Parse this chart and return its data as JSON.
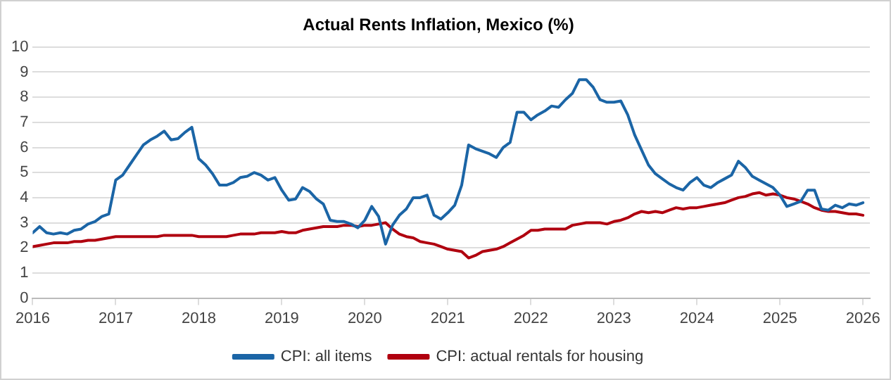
{
  "chart_data": {
    "type": "line",
    "title": "Actual Rents Inflation, Mexico (%)",
    "x": [
      "2016-01",
      "2016-02",
      "2016-03",
      "2016-04",
      "2016-05",
      "2016-06",
      "2016-07",
      "2016-08",
      "2016-09",
      "2016-10",
      "2016-11",
      "2016-12",
      "2017-01",
      "2017-02",
      "2017-03",
      "2017-04",
      "2017-05",
      "2017-06",
      "2017-07",
      "2017-08",
      "2017-09",
      "2017-10",
      "2017-11",
      "2017-12",
      "2018-01",
      "2018-02",
      "2018-03",
      "2018-04",
      "2018-05",
      "2018-06",
      "2018-07",
      "2018-08",
      "2018-09",
      "2018-10",
      "2018-11",
      "2018-12",
      "2019-01",
      "2019-02",
      "2019-03",
      "2019-04",
      "2019-05",
      "2019-06",
      "2019-07",
      "2019-08",
      "2019-09",
      "2019-10",
      "2019-11",
      "2019-12",
      "2020-01",
      "2020-02",
      "2020-03",
      "2020-04",
      "2020-05",
      "2020-06",
      "2020-07",
      "2020-08",
      "2020-09",
      "2020-10",
      "2020-11",
      "2020-12",
      "2021-01",
      "2021-02",
      "2021-03",
      "2021-04",
      "2021-05",
      "2021-06",
      "2021-07",
      "2021-08",
      "2021-09",
      "2021-10",
      "2021-11",
      "2021-12",
      "2022-01",
      "2022-02",
      "2022-03",
      "2022-04",
      "2022-05",
      "2022-06",
      "2022-07",
      "2022-08",
      "2022-09",
      "2022-10",
      "2022-11",
      "2022-12",
      "2023-01",
      "2023-02",
      "2023-03",
      "2023-04",
      "2023-05",
      "2023-06",
      "2023-07",
      "2023-08",
      "2023-09",
      "2023-10",
      "2023-11",
      "2023-12",
      "2024-01",
      "2024-02",
      "2024-03",
      "2024-04",
      "2024-05",
      "2024-06",
      "2024-07",
      "2024-08",
      "2024-09",
      "2024-10",
      "2024-11",
      "2024-12",
      "2025-01",
      "2025-02",
      "2025-03",
      "2025-04",
      "2025-05",
      "2025-06",
      "2025-07",
      "2025-08",
      "2025-09",
      "2025-10",
      "2025-11",
      "2025-12",
      "2026-01"
    ],
    "series": [
      {
        "name": "CPI: all items",
        "color": "#1b65a6",
        "values": [
          2.6,
          2.85,
          2.6,
          2.55,
          2.6,
          2.55,
          2.7,
          2.75,
          2.95,
          3.05,
          3.25,
          3.35,
          4.7,
          4.9,
          5.3,
          5.7,
          6.1,
          6.3,
          6.45,
          6.65,
          6.3,
          6.35,
          6.6,
          6.8,
          5.55,
          5.3,
          4.95,
          4.5,
          4.5,
          4.6,
          4.8,
          4.85,
          5.0,
          4.9,
          4.7,
          4.8,
          4.3,
          3.9,
          3.95,
          4.4,
          4.25,
          3.95,
          3.75,
          3.1,
          3.05,
          3.05,
          2.95,
          2.8,
          3.1,
          3.65,
          3.25,
          2.15,
          2.9,
          3.3,
          3.55,
          4.0,
          4.0,
          4.1,
          3.3,
          3.15,
          3.4,
          3.7,
          4.5,
          6.1,
          5.95,
          5.85,
          5.75,
          5.6,
          6.0,
          6.2,
          7.4,
          7.4,
          7.1,
          7.3,
          7.45,
          7.65,
          7.6,
          7.9,
          8.15,
          8.7,
          8.7,
          8.4,
          7.9,
          7.8,
          7.8,
          7.85,
          7.3,
          6.5,
          5.9,
          5.3,
          4.95,
          4.75,
          4.55,
          4.4,
          4.3,
          4.6,
          4.8,
          4.5,
          4.4,
          4.6,
          4.75,
          4.9,
          5.45,
          5.2,
          4.85,
          4.7,
          4.55,
          4.4,
          4.1,
          3.65,
          3.75,
          3.85,
          4.3,
          4.3,
          3.55,
          3.5,
          3.7,
          3.6,
          3.75,
          3.7,
          3.8
        ]
      },
      {
        "name": "CPI: actual rentals for housing",
        "color": "#b0000f",
        "values": [
          2.05,
          2.1,
          2.15,
          2.2,
          2.2,
          2.2,
          2.25,
          2.25,
          2.3,
          2.3,
          2.35,
          2.4,
          2.45,
          2.45,
          2.45,
          2.45,
          2.45,
          2.45,
          2.45,
          2.5,
          2.5,
          2.5,
          2.5,
          2.5,
          2.45,
          2.45,
          2.45,
          2.45,
          2.45,
          2.5,
          2.55,
          2.55,
          2.55,
          2.6,
          2.6,
          2.6,
          2.65,
          2.6,
          2.6,
          2.7,
          2.75,
          2.8,
          2.85,
          2.85,
          2.85,
          2.9,
          2.9,
          2.85,
          2.9,
          2.9,
          2.95,
          3.0,
          2.75,
          2.55,
          2.45,
          2.4,
          2.25,
          2.2,
          2.15,
          2.05,
          1.95,
          1.9,
          1.85,
          1.6,
          1.7,
          1.85,
          1.9,
          1.95,
          2.05,
          2.2,
          2.35,
          2.5,
          2.7,
          2.7,
          2.75,
          2.75,
          2.75,
          2.75,
          2.9,
          2.95,
          3.0,
          3.0,
          3.0,
          2.95,
          3.05,
          3.1,
          3.2,
          3.35,
          3.45,
          3.4,
          3.45,
          3.4,
          3.5,
          3.6,
          3.55,
          3.6,
          3.6,
          3.65,
          3.7,
          3.75,
          3.8,
          3.9,
          4.0,
          4.05,
          4.15,
          4.2,
          4.1,
          4.15,
          4.1,
          4.0,
          3.95,
          3.85,
          3.75,
          3.6,
          3.5,
          3.45,
          3.45,
          3.4,
          3.35,
          3.35,
          3.3
        ]
      }
    ],
    "xlim": [
      "2016-01",
      "2026-02"
    ],
    "xticks": [
      "2016",
      "2017",
      "2018",
      "2019",
      "2020",
      "2021",
      "2022",
      "2023",
      "2024",
      "2025",
      "2026"
    ],
    "ylim": [
      0,
      10
    ],
    "yticks": [
      0,
      1,
      2,
      3,
      4,
      5,
      6,
      7,
      8,
      9,
      10
    ],
    "grid": "y",
    "legend": "bottom",
    "marker": "none",
    "line_style": "solid"
  }
}
